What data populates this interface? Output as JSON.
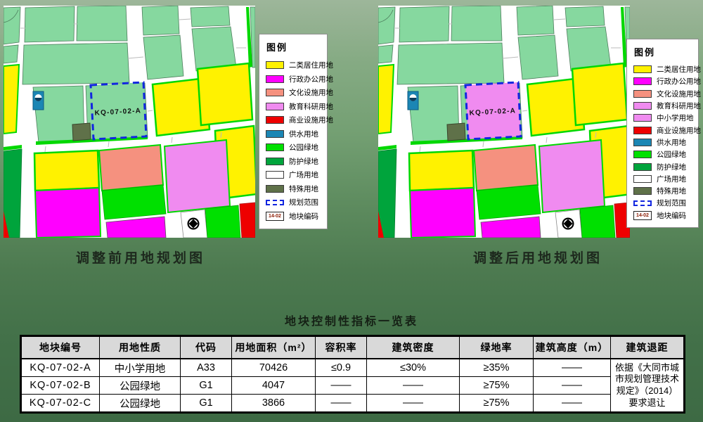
{
  "maps": {
    "caption_before": "调整前用地规划图",
    "caption_after": "调整后用地规划图",
    "plot_label": "KQ-07-02-A",
    "plot_fill_before": "#86D89F",
    "plot_fill_after": "#F08BF0",
    "plot_boundary_color": "#1226E0"
  },
  "legend": {
    "title": "图例",
    "code_sample": "14-02",
    "before": [
      {
        "label": "二类居住用地",
        "color": "#FFF200"
      },
      {
        "label": "行政办公用地",
        "color": "#FF00FF"
      },
      {
        "label": "文化设施用地",
        "color": "#F5917F"
      },
      {
        "label": "教育科研用地",
        "color": "#F08BF0"
      },
      {
        "label": "商业设施用地",
        "color": "#EE0000"
      },
      {
        "label": "供水用地",
        "color": "#1B86B4"
      },
      {
        "label": "公园绿地",
        "color": "#00E000"
      },
      {
        "label": "防护绿地",
        "color": "#00A43C"
      },
      {
        "label": "广场用地",
        "color": "#FFFFFF"
      },
      {
        "label": "特殊用地",
        "color": "#5F7149"
      },
      {
        "label": "规划范围",
        "type": "dashed"
      },
      {
        "label": "地块编码",
        "type": "code"
      }
    ],
    "after": [
      {
        "label": "二类居住用地",
        "color": "#FFF200"
      },
      {
        "label": "行政办公用地",
        "color": "#FF00FF"
      },
      {
        "label": "文化设施用地",
        "color": "#F5917F"
      },
      {
        "label": "教育科研用地",
        "color": "#F08BF0"
      },
      {
        "label": "中小学用地",
        "color": "#F08BF0"
      },
      {
        "label": "商业设施用地",
        "color": "#EE0000"
      },
      {
        "label": "供水用地",
        "color": "#1B86B4"
      },
      {
        "label": "公园绿地",
        "color": "#00E000"
      },
      {
        "label": "防护绿地",
        "color": "#00A43C"
      },
      {
        "label": "广场用地",
        "color": "#FFFFFF"
      },
      {
        "label": "特殊用地",
        "color": "#5F7149"
      },
      {
        "label": "规划范围",
        "type": "dashed"
      },
      {
        "label": "地块编码",
        "type": "code"
      }
    ]
  },
  "table": {
    "title": "地块控制性指标一览表",
    "headers": [
      "地块编号",
      "用地性质",
      "代码",
      "用地面积（m²）",
      "容积率",
      "建筑密度",
      "绿地率",
      "建筑高度（m）",
      "建筑退距"
    ],
    "rows": [
      [
        "KQ-07-02-A",
        "中小学用地",
        "A33",
        "70426",
        "≤0.9",
        "≤30%",
        "≥35%",
        "——"
      ],
      [
        "KQ-07-02-B",
        "公园绿地",
        "G1",
        "4047",
        "——",
        "——",
        "≥75%",
        "——"
      ],
      [
        "KQ-07-02-C",
        "公园绿地",
        "G1",
        "3866",
        "——",
        "——",
        "≥75%",
        "——"
      ]
    ],
    "setback_note": "依据《大同市城市规划管理技术规定》（2014）要求退让"
  }
}
